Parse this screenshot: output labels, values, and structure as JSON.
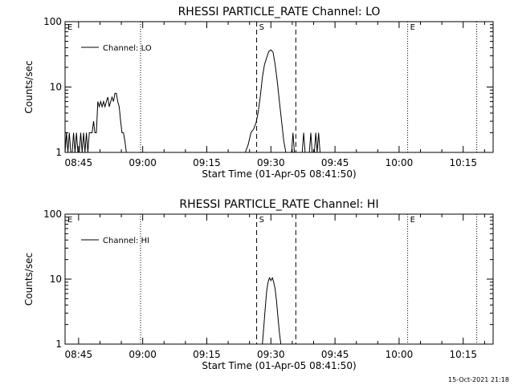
{
  "footer": {
    "timestamp": "15-Oct-2021 21:18"
  },
  "chart_data": [
    {
      "type": "line",
      "title": "RHESSI PARTICLE_RATE Channel: LO",
      "xlabel": "Start Time (01-Apr-05 08:41:50)",
      "ylabel": "Counts/sec",
      "xlim": [
        "08:41:50",
        "10:22:00"
      ],
      "ylim": [
        1,
        100
      ],
      "yscale": "log",
      "x_ticks": [
        "08:45",
        "09:00",
        "09:15",
        "09:30",
        "09:45",
        "10:00",
        "10:15"
      ],
      "y_ticks": [
        "1",
        "10",
        "100"
      ],
      "grid": false,
      "legend_position": "top-left",
      "series": [
        {
          "name": "Channel: LO",
          "x": [
            "08:41:50",
            "08:42:10",
            "08:42:30",
            "08:42:50",
            "08:43:10",
            "08:43:30",
            "08:43:50",
            "08:44:10",
            "08:44:30",
            "08:44:50",
            "08:45:10",
            "08:45:30",
            "08:45:50",
            "08:46:10",
            "08:46:30",
            "08:46:50",
            "08:47:10",
            "08:47:30",
            "08:47:50",
            "08:48:10",
            "08:48:30",
            "08:48:50",
            "08:49:10",
            "08:49:30",
            "08:49:50",
            "08:50:10",
            "08:50:30",
            "08:50:50",
            "08:51:10",
            "08:51:30",
            "08:51:50",
            "08:52:10",
            "08:52:30",
            "08:52:50",
            "08:53:10",
            "08:53:30",
            "08:53:50",
            "08:54:10",
            "08:54:30",
            "08:54:50",
            "08:55:10",
            "08:55:30",
            "08:55:50",
            "08:56:10",
            "08:56:30",
            "08:56:50",
            "08:57:10",
            "08:57:30",
            "08:57:50",
            "08:58:10",
            "08:58:30",
            "08:58:50",
            "08:59:10",
            "09:24:00",
            "09:24:40",
            "09:25:20",
            "09:26:00",
            "09:26:30",
            "09:27:00",
            "09:27:30",
            "09:28:00",
            "09:28:30",
            "09:29:00",
            "09:29:30",
            "09:30:00",
            "09:30:30",
            "09:31:00",
            "09:31:30",
            "09:32:00",
            "09:32:30",
            "09:33:00",
            "09:33:30",
            "09:34:50",
            "09:35:10",
            "09:35:30",
            "09:37:20",
            "09:37:40",
            "09:38:00",
            "09:39:00",
            "09:39:20",
            "09:39:40",
            "09:40:10",
            "09:40:30",
            "09:40:50",
            "09:41:10",
            "09:41:30",
            "09:41:50"
          ],
          "y": [
            1,
            2,
            1,
            2,
            1,
            1,
            2,
            1,
            2,
            1,
            1,
            2,
            1,
            2,
            1,
            2,
            1,
            2,
            2,
            2,
            3,
            2,
            2,
            6,
            5,
            6,
            5,
            6,
            5,
            6,
            7,
            5,
            6,
            7,
            6,
            8,
            8,
            6,
            5,
            3,
            2,
            2,
            1.5,
            1,
            1,
            1,
            1,
            1,
            1,
            1,
            1,
            1,
            1,
            1,
            1.3,
            2,
            2.3,
            2.8,
            4,
            7,
            14,
            22,
            28,
            35,
            37,
            34,
            22,
            12,
            6,
            3,
            1.5,
            1,
            1,
            2,
            1,
            1,
            2,
            1,
            1,
            2,
            1,
            1,
            2,
            1,
            2,
            1,
            1
          ]
        }
      ],
      "markers": [
        {
          "label": "E",
          "time": "08:41:50",
          "style": "dotted"
        },
        {
          "label": "",
          "time": "08:59:30",
          "style": "dotted"
        },
        {
          "label": "S",
          "time": "09:26:40",
          "style": "dashed"
        },
        {
          "label": "",
          "time": "09:35:50",
          "style": "dashed"
        },
        {
          "label": "E",
          "time": "10:02:00",
          "style": "dotted"
        },
        {
          "label": "",
          "time": "10:18:10",
          "style": "dotted"
        }
      ]
    },
    {
      "type": "line",
      "title": "RHESSI PARTICLE_RATE Channel: HI",
      "xlabel": "Start Time (01-Apr-05 08:41:50)",
      "ylabel": "Counts/sec",
      "xlim": [
        "08:41:50",
        "10:22:00"
      ],
      "ylim": [
        1,
        100
      ],
      "yscale": "log",
      "x_ticks": [
        "08:45",
        "09:00",
        "09:15",
        "09:30",
        "09:45",
        "10:00",
        "10:15"
      ],
      "y_ticks": [
        "1",
        "10",
        "100"
      ],
      "grid": false,
      "legend_position": "top-left",
      "series": [
        {
          "name": "Channel: HI",
          "x": [
            "09:28:00",
            "09:28:20",
            "09:28:40",
            "09:29:00",
            "09:29:20",
            "09:29:40",
            "09:30:00",
            "09:30:20",
            "09:30:40",
            "09:31:00",
            "09:31:20",
            "09:31:40",
            "09:32:00",
            "09:32:20",
            "09:32:40"
          ],
          "y": [
            1,
            1.8,
            3.5,
            6.5,
            9,
            10.5,
            9.5,
            10.5,
            9,
            7,
            4.5,
            2.5,
            1.5,
            1,
            1
          ]
        }
      ],
      "markers": [
        {
          "label": "E",
          "time": "08:41:50",
          "style": "dotted"
        },
        {
          "label": "",
          "time": "08:59:30",
          "style": "dotted"
        },
        {
          "label": "S",
          "time": "09:26:40",
          "style": "dashed"
        },
        {
          "label": "",
          "time": "09:35:50",
          "style": "dashed"
        },
        {
          "label": "E",
          "time": "10:02:00",
          "style": "dotted"
        },
        {
          "label": "",
          "time": "10:18:10",
          "style": "dotted"
        }
      ]
    }
  ]
}
